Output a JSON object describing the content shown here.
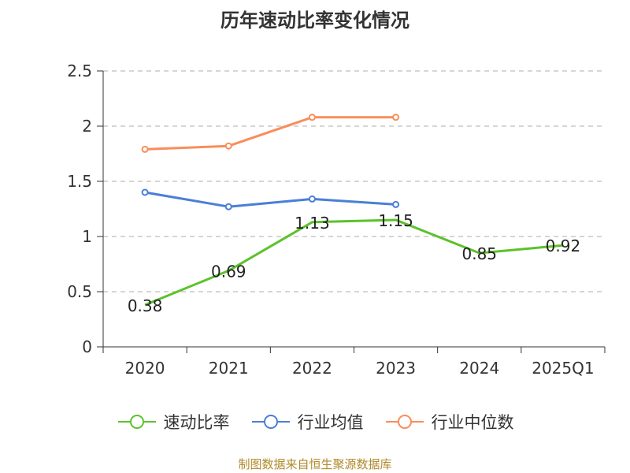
{
  "chart_data": {
    "type": "line",
    "title": "历年速动比率变化情况",
    "categories": [
      "2020",
      "2021",
      "2022",
      "2023",
      "2024",
      "2025Q1"
    ],
    "ylim": [
      0,
      2.5
    ],
    "yticks": [
      0,
      0.5,
      1,
      1.5,
      2,
      2.5
    ],
    "ytick_labels": [
      "0",
      "0.5",
      "1",
      "1.5",
      "2",
      "2.5"
    ],
    "grid": true,
    "legend_position": "bottom",
    "series": [
      {
        "name": "速动比率",
        "color": "#5cc22b",
        "values": [
          0.38,
          0.69,
          1.13,
          1.15,
          0.85,
          0.92
        ],
        "labels": [
          "0.38",
          "0.69",
          "1.13",
          "1.15",
          "0.85",
          "0.92"
        ]
      },
      {
        "name": "行业均值",
        "color": "#4a7fd6",
        "values": [
          1.4,
          1.27,
          1.34,
          1.29,
          null,
          null
        ]
      },
      {
        "name": "行业中位数",
        "color": "#f98d5a",
        "values": [
          1.79,
          1.82,
          2.08,
          2.08,
          null,
          null
        ]
      }
    ]
  },
  "source": "制图数据来自恒生聚源数据库"
}
